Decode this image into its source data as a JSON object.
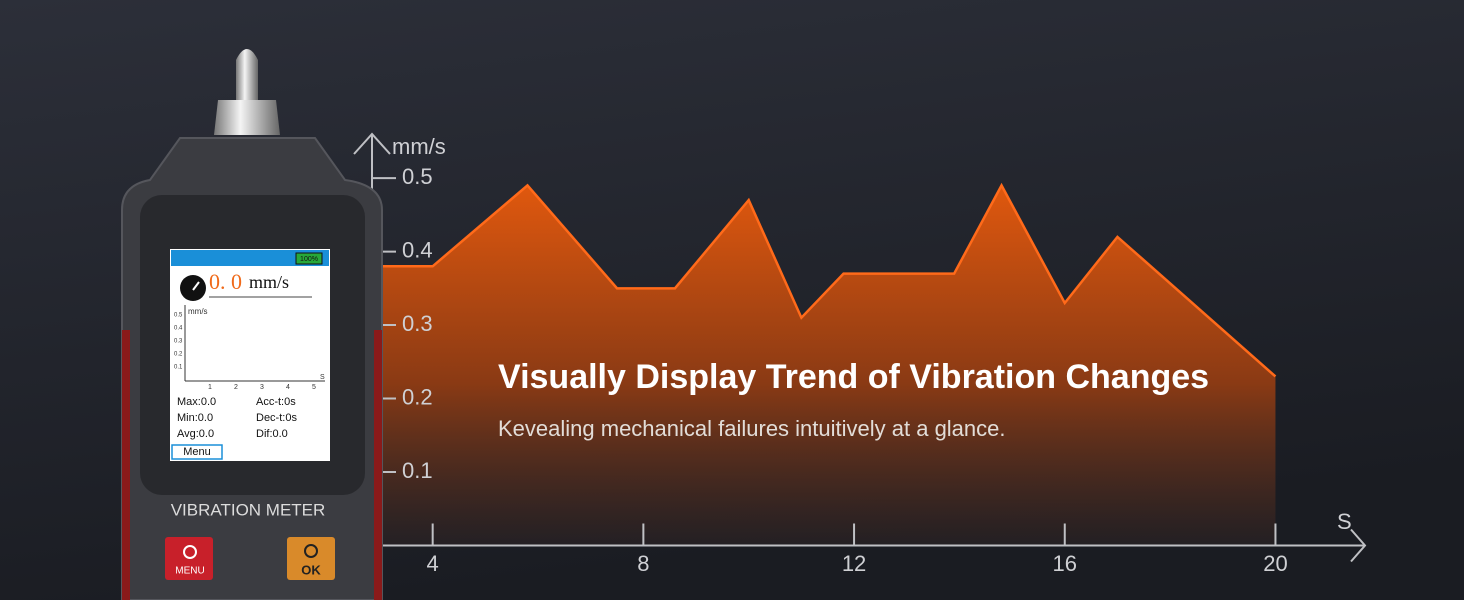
{
  "chart_data": {
    "type": "area",
    "title": "Visually Display Trend of Vibration Changes",
    "subtitle": "Kevealing mechanical failures intuitively at a glance.",
    "x_label": "S",
    "y_label": "mm/s",
    "x": [
      3.0,
      4.0,
      5.8,
      7.5,
      8.6,
      10.0,
      11.0,
      11.8,
      13.9,
      14.8,
      16.0,
      17.0,
      20.0
    ],
    "series": [
      {
        "color": "#ff6a1a",
        "values": [
          0.38,
          0.38,
          0.49,
          0.35,
          0.35,
          0.47,
          0.31,
          0.37,
          0.37,
          0.49,
          0.33,
          0.42,
          0.23
        ]
      }
    ],
    "xlim": [
      3,
      21.7
    ],
    "ylim": [
      0,
      0.56
    ],
    "xticks": [
      4,
      8,
      12,
      16,
      20
    ],
    "yticks": [
      0.1,
      0.2,
      0.3,
      0.4,
      0.5
    ]
  },
  "device": {
    "name": "VIBRATION METER",
    "menu_button": "MENU",
    "ok_button": "OK",
    "screen": {
      "battery": "100%",
      "reading": "0. 0",
      "unit": "mm/s",
      "chart_unit": "mm/s",
      "chart_yticks": [
        "0.5",
        "0.4",
        "0.3",
        "0.2",
        "0.1"
      ],
      "chart_xticks": [
        "1",
        "2",
        "3",
        "4",
        "5"
      ],
      "chart_xlabel": "S",
      "stats": [
        "Max:0.0",
        "Acc-t:0s",
        "Min:0.0",
        "Dec-t:0s",
        "Avg:0.0",
        "Dif:0.0"
      ],
      "menu": "Menu"
    }
  }
}
